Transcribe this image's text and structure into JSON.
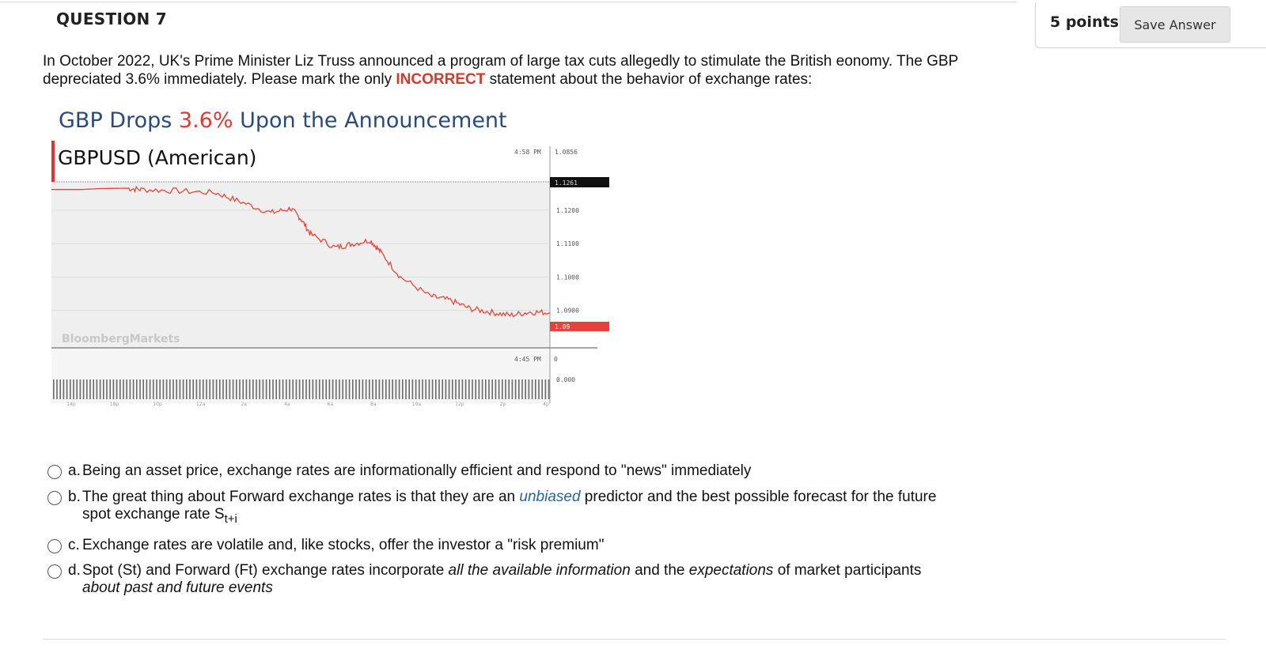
{
  "question": {
    "title": "QUESTION 7",
    "points": "5 points",
    "save_label": "Save Answer",
    "stem": {
      "before": "In October 2022, UK's Prime Minister Liz Truss announced a program of large tax cuts allegedly to stimulate the British eonomy. The GBP depreciated 3.6% immediately. Please mark the only ",
      "highlight": "INCORRECT",
      "after": " statement about the behavior of exchange rates:",
      "highlight_color": "#d33a2c"
    }
  },
  "figure": {
    "title_before": "GBP Drops ",
    "title_pct": "3.6%",
    "title_after": " Upon the Announcement",
    "subtitle": "GBPUSD (American)",
    "watermark": "BloombergMarkets",
    "time_top": "4:58 PM",
    "time_bottom": "4:45 PM",
    "header_value": "1.0856",
    "last_price_label": "1.1261",
    "current_price_label": "1.09",
    "volume_top_label": "0",
    "volume_label": "0.000",
    "x_ticks": [
      "14p",
      "18p",
      "10p",
      "12a",
      "2a",
      "4a",
      "6a",
      "8a",
      "10a",
      "12p",
      "2p",
      "4p"
    ],
    "colors": {
      "title": "#274a80",
      "accent": "#e03a30",
      "line": "#e8463a",
      "plot_bg": "#efefef"
    }
  },
  "chart_data": {
    "type": "line",
    "title": "GBP Drops 3.6% Upon the Announcement",
    "subtitle": "GBPUSD (American)",
    "y_ticks": [
      "1.1200",
      "1.1100",
      "1.1000",
      "1.0900"
    ],
    "ylim": [
      1.0835,
      1.1285
    ],
    "x_index": [
      0,
      0.06,
      0.1,
      0.15,
      0.18,
      0.25,
      0.33,
      0.38,
      0.44,
      0.48,
      0.5,
      0.52,
      0.57,
      0.6,
      0.64,
      0.66,
      0.7,
      0.76,
      0.8,
      0.84,
      0.88,
      0.92,
      0.96,
      1.0
    ],
    "series": [
      {
        "values": [
          1.1262,
          1.1262,
          1.1265,
          1.1266,
          1.1262,
          1.1258,
          1.1252,
          1.1225,
          1.1192,
          1.1205,
          1.1175,
          1.1128,
          1.1088,
          1.1098,
          1.111,
          1.1075,
          1.1,
          1.0942,
          1.093,
          1.0905,
          1.0895,
          1.0885,
          1.0895,
          1.0893
        ]
      }
    ],
    "grid": true
  },
  "options": [
    {
      "letter": "a.",
      "text": "Being an asset price, exchange rates are informationally efficient and respond to \"news\" immediately"
    },
    {
      "letter": "b.",
      "t1": "The great thing about Forward exchange rates is that they are an ",
      "t_blue": "unbiased",
      "t2": " predictor and the best possible forecast for the future spot exchange rate S",
      "t_sub": "t+i"
    },
    {
      "letter": "c.",
      "text": "Exchange rates are volatile and, like stocks, offer the investor a \"risk premium\""
    },
    {
      "letter": "d.",
      "t1": "Spot (St) and Forward (Ft) exchange rates incorporate ",
      "t_i1": "all the available information",
      "t2": " and the ",
      "t_i2": "expectations",
      "t3": " of market participants ",
      "t_i3": "about past and future events"
    }
  ]
}
